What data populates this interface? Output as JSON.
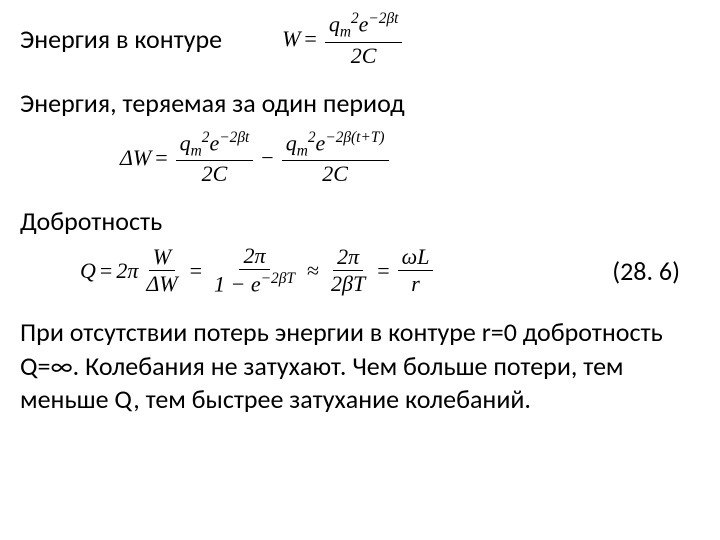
{
  "line1": {
    "label": "Энергия в контуре",
    "formula": {
      "lhs": "W",
      "num": "q<sub>m</sub><sup>2</sup>e<sup>−2βt</sup>",
      "den": "2C"
    }
  },
  "line2": {
    "label": "Энергия, теряемая за один период",
    "formula": {
      "lhs": "ΔW",
      "t1_num": "q<sub>m</sub><sup>2</sup>e<sup>−2βt</sup>",
      "t1_den": "2C",
      "t2_num": "q<sub>m</sub><sup>2</sup>e<sup>−2β(t+T)</sup>",
      "t2_den": "2C"
    }
  },
  "line3": {
    "label": "Добротность",
    "formula": {
      "lhs": "Q",
      "coef": "2π",
      "f1_num": "W",
      "f1_den": "ΔW",
      "f2_num": "2π",
      "f2_den": "1 − e<sup>−2βT</sup>",
      "f3_num": "2π",
      "f3_den": "2βT",
      "f4_num": "ωL",
      "f4_den": "r"
    },
    "eqnum": "(28. 6)"
  },
  "paragraph": "При отсутствии потерь энергии в контуре r=0 добротность Q=∞. Колебания не затухают. Чем больше потери, тем меньше Q, тем быстрее затухание колебаний."
}
